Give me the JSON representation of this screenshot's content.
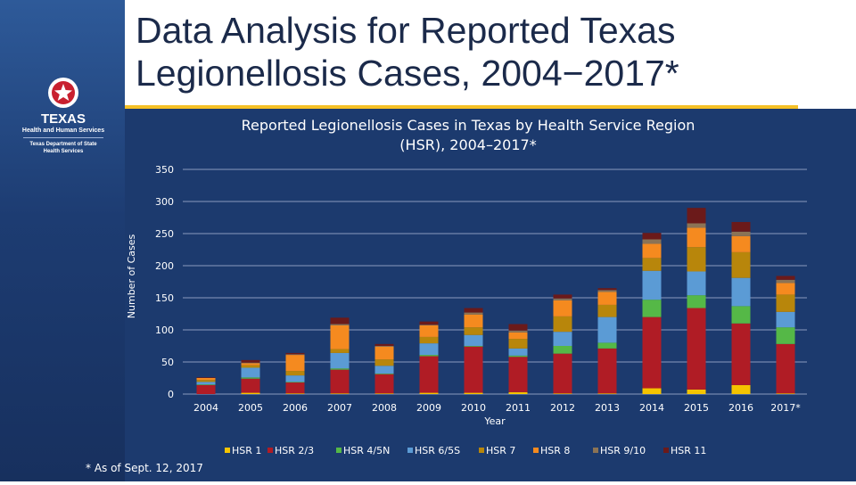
{
  "slide": {
    "title_line1": "Data Analysis for Reported Texas",
    "title_line2": "Legionellosis Cases, 2004−2017*",
    "footnote": "* As of Sept. 12, 2017",
    "logo": {
      "line1": "TEXAS",
      "line2": "Health and Human Services",
      "line3": "Texas Department of State",
      "line4": "Health Services"
    }
  },
  "colors": {
    "accent_gold": "#f5c026",
    "background": "#1c3a6e"
  },
  "chart_data": {
    "type": "bar",
    "stacked": true,
    "title": "Reported Legionellosis Cases in Texas by Health Service Region (HSR), 2004–2017*",
    "title_line1": "Reported Legionellosis Cases in Texas by Health Service Region",
    "title_line2": "(HSR), 2004–2017*",
    "xlabel": "Year",
    "ylabel": "Number of Cases",
    "ylim": [
      0,
      350
    ],
    "yticks": [
      0,
      50,
      100,
      150,
      200,
      250,
      300,
      350
    ],
    "grid": true,
    "legend_position": "bottom",
    "categories": [
      "2004",
      "2005",
      "2006",
      "2007",
      "2008",
      "2009",
      "2010",
      "2011",
      "2012",
      "2013",
      "2014",
      "2015",
      "2016",
      "2017*"
    ],
    "series": [
      {
        "name": "HSR 1",
        "color": "#f5c400",
        "values": [
          0,
          2,
          1,
          1,
          1,
          2,
          2,
          3,
          1,
          1,
          9,
          7,
          14,
          1
        ]
      },
      {
        "name": "HSR 2/3",
        "color": "#b01c25",
        "values": [
          14,
          22,
          17,
          37,
          30,
          57,
          72,
          55,
          62,
          70,
          111,
          127,
          96,
          77
        ]
      },
      {
        "name": "HSR 4/5N",
        "color": "#55b847",
        "values": [
          1,
          2,
          1,
          2,
          1,
          2,
          1,
          2,
          12,
          9,
          27,
          20,
          27,
          26
        ]
      },
      {
        "name": "HSR 6/5S",
        "color": "#5b9bd5",
        "values": [
          4,
          15,
          10,
          24,
          12,
          18,
          17,
          11,
          22,
          40,
          45,
          37,
          44,
          24
        ]
      },
      {
        "name": "HSR 7",
        "color": "#b8860b",
        "values": [
          3,
          4,
          7,
          6,
          10,
          10,
          12,
          15,
          24,
          19,
          20,
          38,
          40,
          27
        ]
      },
      {
        "name": "HSR 8",
        "color": "#f58a1f",
        "values": [
          3,
          3,
          25,
          37,
          20,
          18,
          20,
          10,
          25,
          20,
          22,
          30,
          25,
          18
        ]
      },
      {
        "name": "HSR 9/10",
        "color": "#8b7355",
        "values": [
          0,
          1,
          1,
          2,
          1,
          1,
          3,
          3,
          3,
          3,
          7,
          7,
          7,
          5
        ]
      },
      {
        "name": "HSR 11",
        "color": "#6b1a1a",
        "values": [
          1,
          4,
          2,
          10,
          3,
          5,
          7,
          10,
          6,
          3,
          10,
          24,
          15,
          6
        ]
      }
    ]
  }
}
